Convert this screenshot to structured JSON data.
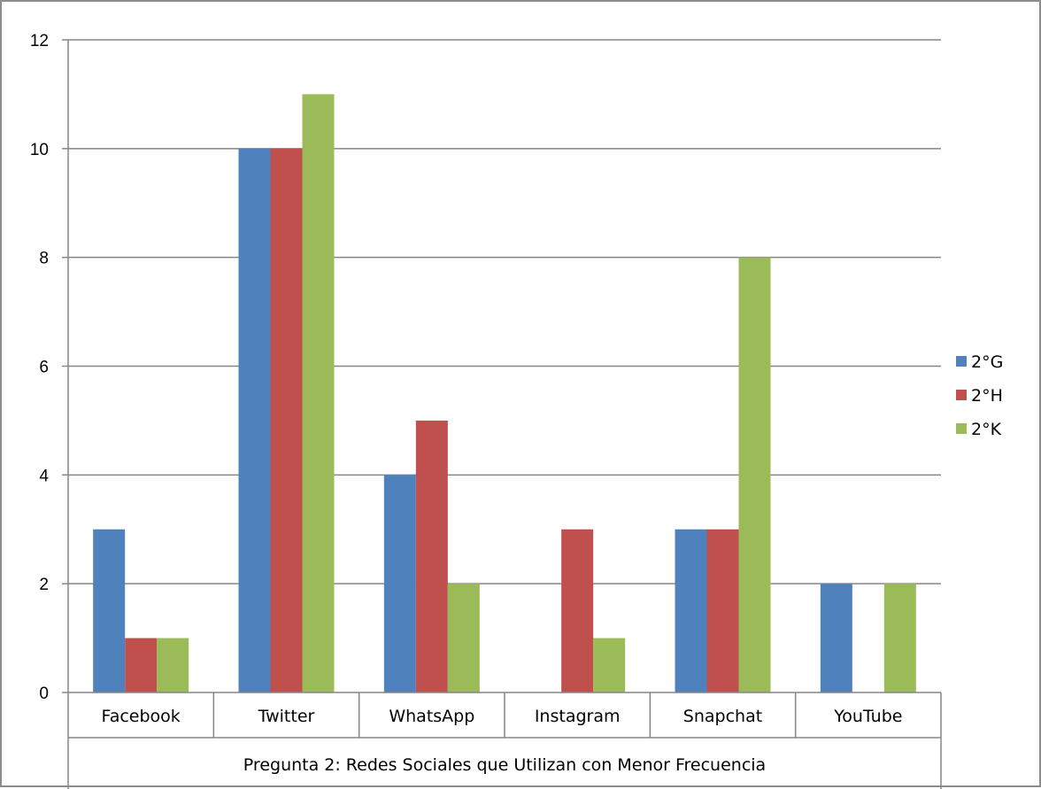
{
  "chart_data": {
    "type": "bar",
    "categories": [
      "Facebook",
      "Twitter",
      "WhatsApp",
      "Instagram",
      "Snapchat",
      "YouTube"
    ],
    "series": [
      {
        "name": "2°G",
        "color": "#4f81bd",
        "values": [
          3,
          10,
          4,
          0,
          3,
          2
        ]
      },
      {
        "name": "2°H",
        "color": "#c0504d",
        "values": [
          1,
          10,
          5,
          3,
          3,
          0
        ]
      },
      {
        "name": "2°K",
        "color": "#9bbb59",
        "values": [
          1,
          11,
          2,
          1,
          8,
          2
        ]
      }
    ],
    "xlabel": "Pregunta 2: Redes Sociales que Utilizan con Menor Frecuencia",
    "ylabel": "",
    "ylim": [
      0,
      12
    ],
    "yticks": [
      0,
      2,
      4,
      6,
      8,
      10,
      12
    ],
    "grid": true,
    "legend_position": "right",
    "gridline_color": "#868686"
  }
}
